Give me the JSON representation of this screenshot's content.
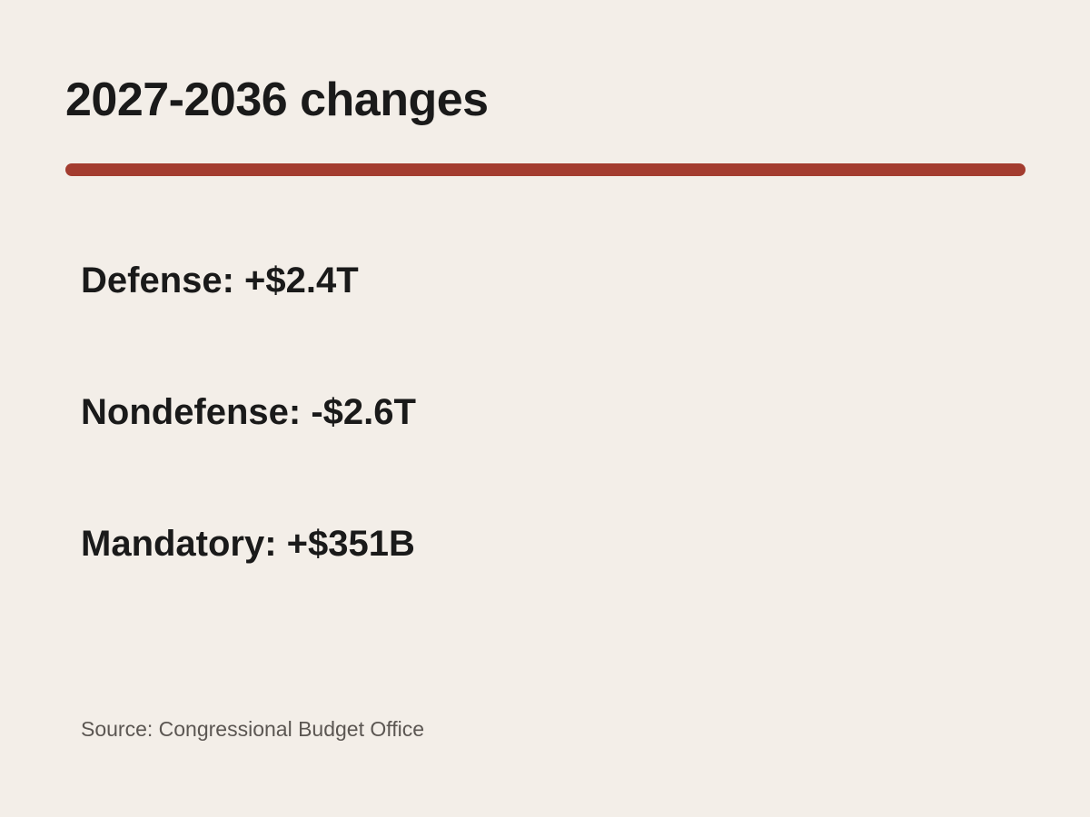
{
  "title": "2027-2036 changes",
  "accent_color": "#a33c2f",
  "background_color": "#f3eee8",
  "items": [
    {
      "text": "Defense: +$2.4T"
    },
    {
      "text": "Nondefense: -$2.6T"
    },
    {
      "text": "Mandatory: +$351B"
    }
  ],
  "source": "Source: Congressional Budget Office"
}
